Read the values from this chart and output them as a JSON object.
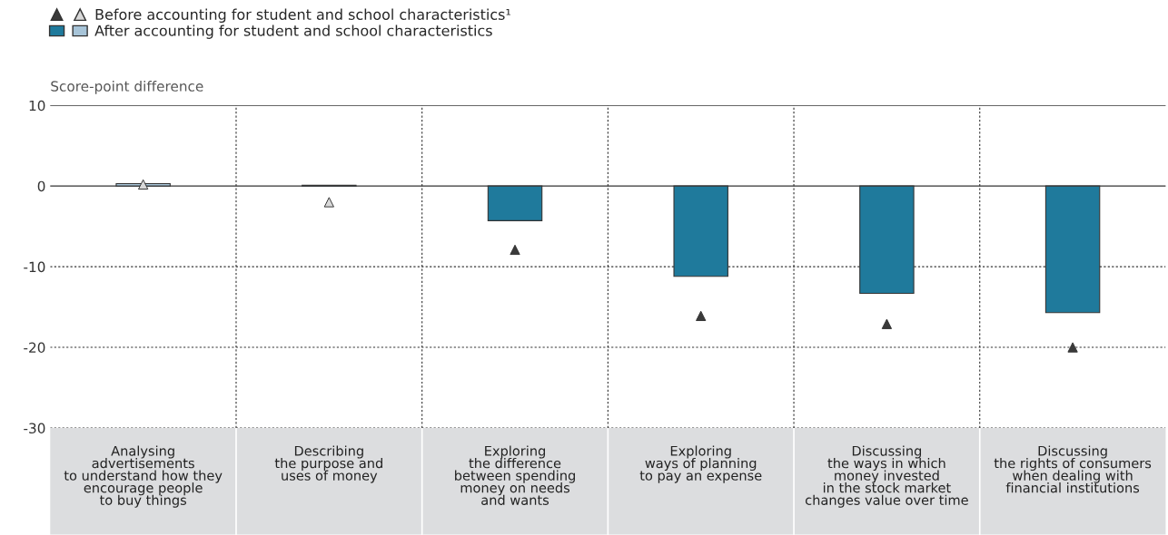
{
  "chart_data": {
    "type": "bar",
    "ylabel": "Score-point difference",
    "categories": [
      "Analysing\nadvertisements\nto understand how they\nencourage people\nto buy things",
      "Describing\nthe purpose and\nuses of money",
      "Exploring\nthe difference\nbetween spending\nmoney on needs\nand wants",
      "Exploring\nways of planning\nto pay an expense",
      "Discussing\nthe ways in which\nmoney invested\nin the stock market\nchanges value over time",
      "Discussing\nthe rights of consumers\nwhen dealing with\nfinancial institutions"
    ],
    "series": [
      {
        "name": "After accounting for student and school characteristics",
        "color": "#1f7a9c",
        "colors": [
          "#a7c4d8",
          "#a7c4d8",
          "#1f7a9c",
          "#1f7a9c",
          "#1f7a9c",
          "#1f7a9c"
        ],
        "values": [
          0.3,
          0.1,
          -4.3,
          -11.2,
          -13.3,
          -15.7
        ]
      },
      {
        "type": "scatter",
        "name": "Before accounting for student and school characteristics¹",
        "color": "#3a3a3a",
        "colors": [
          "#d9d9d9",
          "#d9d9d9",
          "#3a3a3a",
          "#3a3a3a",
          "#3a3a3a",
          "#3a3a3a"
        ],
        "marker": "triangle",
        "values": [
          0.2,
          -2.0,
          -7.9,
          -16.1,
          -17.1,
          -20.0
        ]
      }
    ],
    "ylim": [
      -30,
      10
    ],
    "yticks": [
      -30,
      -20,
      -10,
      0,
      10
    ],
    "grid": true,
    "legend": "top left"
  }
}
